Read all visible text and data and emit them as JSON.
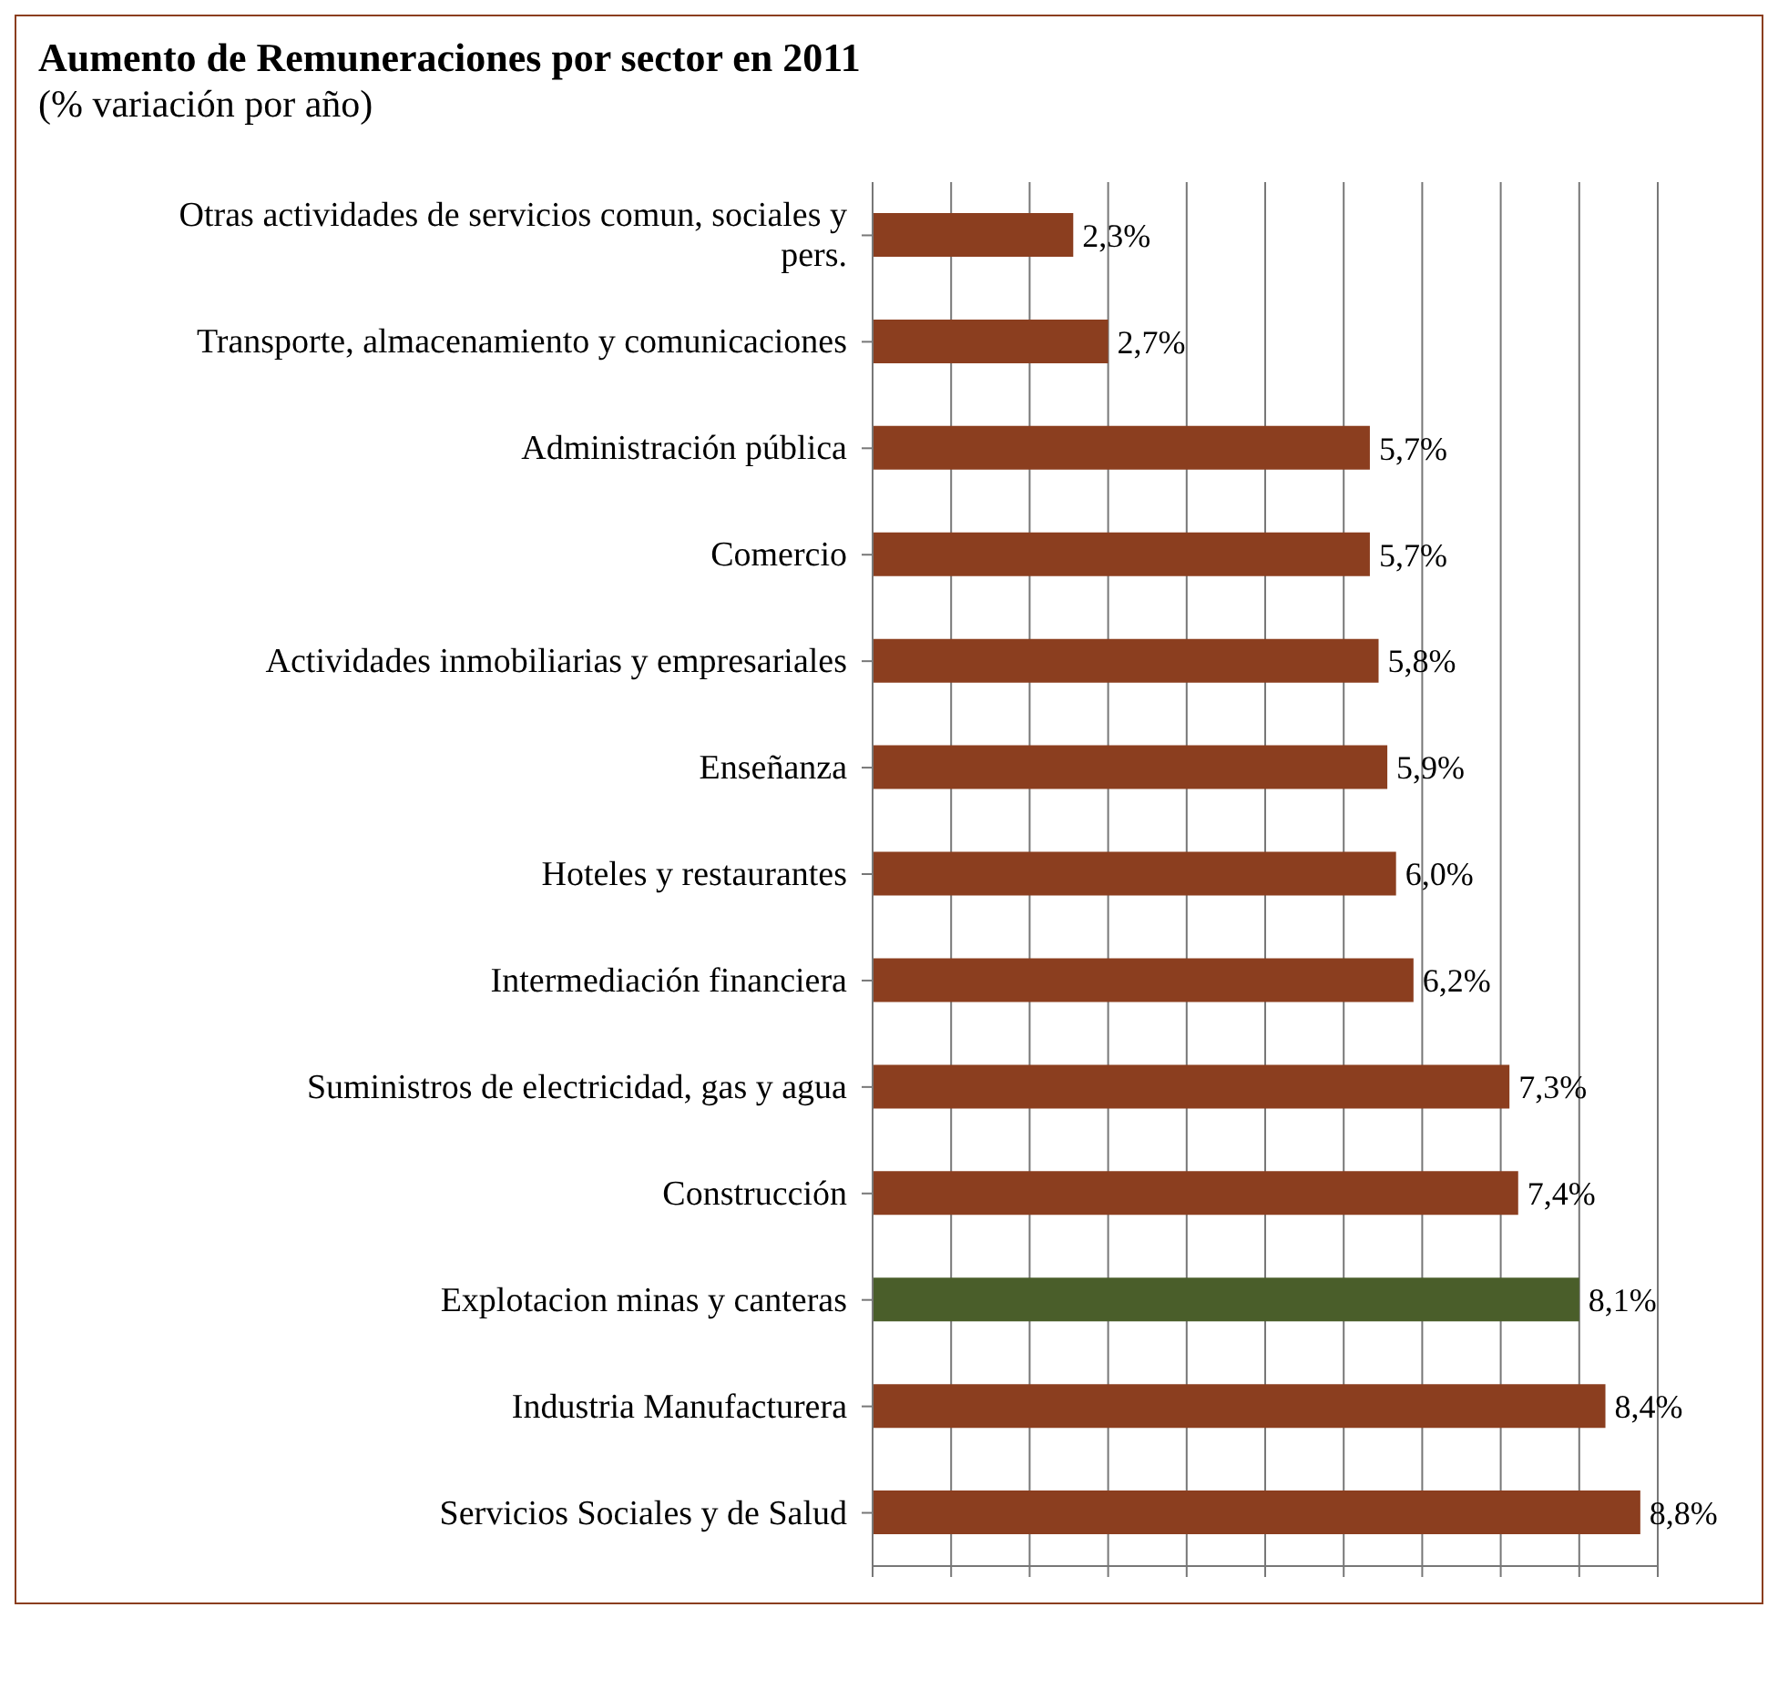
{
  "chart_data": {
    "type": "bar",
    "orientation": "horizontal",
    "title": "Aumento de Remuneraciones por sector en 2011",
    "subtitle": "(% variación por año)",
    "categories": [
      "Otras actividades de servicios comun, sociales y pers.",
      "Transporte, almacenamiento y comunicaciones",
      "Administración pública",
      "Comercio",
      "Actividades inmobiliarias y empresariales",
      "Enseñanza",
      "Hoteles y restaurantes",
      "Intermediación financiera",
      "Suministros de electricidad, gas y agua",
      "Construcción",
      "Explotacion minas y canteras",
      "Industria Manufacturera",
      "Servicios Sociales y de Salud"
    ],
    "values": [
      2.3,
      2.7,
      5.7,
      5.7,
      5.8,
      5.9,
      6.0,
      6.2,
      7.3,
      7.4,
      8.1,
      8.4,
      8.8
    ],
    "value_labels": [
      "2,3%",
      "2,7%",
      "5,7%",
      "5,7%",
      "5,8%",
      "5,9%",
      "6,0%",
      "6,2%",
      "7,3%",
      "7,4%",
      "8,1%",
      "8,4%",
      "8,8%"
    ],
    "colors": [
      "#8b3e1f",
      "#8b3e1f",
      "#8b3e1f",
      "#8b3e1f",
      "#8b3e1f",
      "#8b3e1f",
      "#8b3e1f",
      "#8b3e1f",
      "#8b3e1f",
      "#8b3e1f",
      "#4a5e2a",
      "#8b3e1f",
      "#8b3e1f"
    ],
    "tick_labels": "y",
    "grid": "x"
  }
}
